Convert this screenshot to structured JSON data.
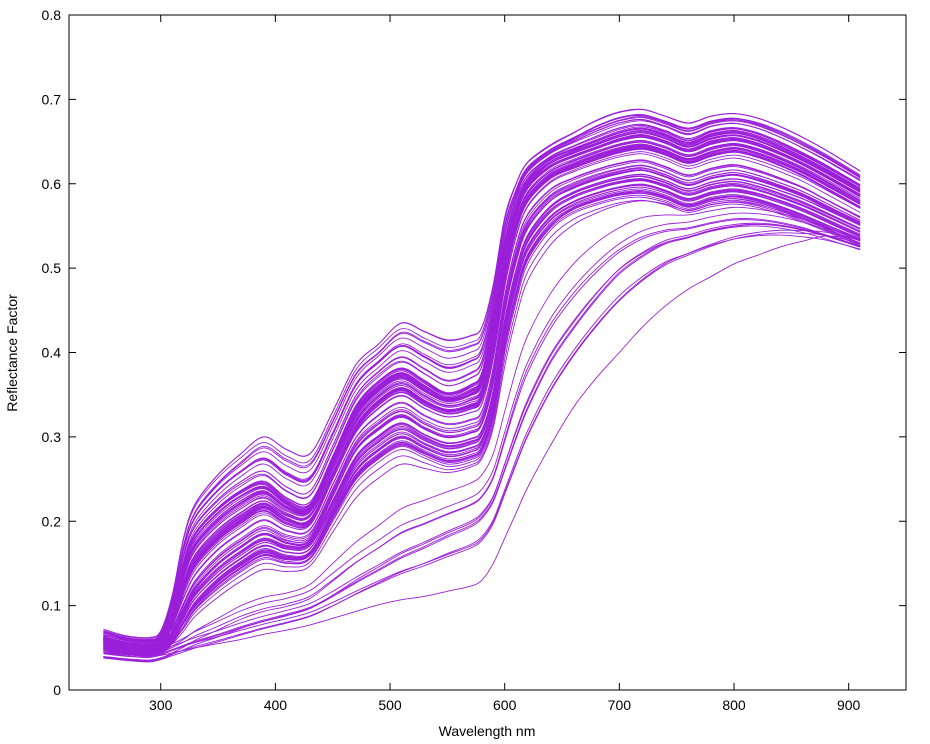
{
  "chart_data": {
    "type": "line",
    "title": "",
    "xlabel": "Wavelength nm",
    "ylabel": "Reflectance Factor",
    "xlim": [
      220,
      950
    ],
    "ylim": [
      0,
      0.8
    ],
    "xticks": [
      300,
      400,
      500,
      600,
      700,
      800,
      900
    ],
    "yticks": [
      0,
      0.1,
      0.2,
      0.3,
      0.4,
      0.5,
      0.6,
      0.7,
      0.8
    ],
    "ytick_labels": [
      "0",
      "0.1",
      "0.2",
      "0.3",
      "0.4",
      "0.5",
      "0.6",
      "0.7",
      "0.8"
    ],
    "grid": false,
    "legend": "none",
    "line_color": "#9b1fd9",
    "x": [
      250,
      270,
      290,
      300,
      310,
      320,
      330,
      350,
      370,
      390,
      410,
      430,
      450,
      470,
      490,
      510,
      530,
      550,
      570,
      580,
      590,
      600,
      610,
      620,
      640,
      660,
      680,
      700,
      720,
      740,
      760,
      780,
      800,
      820,
      840,
      860,
      880,
      910
    ],
    "representative_series": [
      {
        "values": [
          0.068,
          0.06,
          0.058,
          0.066,
          0.11,
          0.18,
          0.22,
          0.255,
          0.28,
          0.3,
          0.285,
          0.28,
          0.33,
          0.385,
          0.41,
          0.435,
          0.425,
          0.415,
          0.42,
          0.43,
          0.48,
          0.56,
          0.6,
          0.625,
          0.645,
          0.66,
          0.675,
          0.685,
          0.688,
          0.68,
          0.672,
          0.68,
          0.683,
          0.678,
          0.668,
          0.655,
          0.64,
          0.615
        ]
      },
      {
        "values": [
          0.062,
          0.055,
          0.053,
          0.06,
          0.095,
          0.15,
          0.185,
          0.215,
          0.235,
          0.245,
          0.225,
          0.22,
          0.275,
          0.335,
          0.365,
          0.38,
          0.365,
          0.35,
          0.36,
          0.375,
          0.44,
          0.52,
          0.575,
          0.605,
          0.628,
          0.64,
          0.65,
          0.66,
          0.665,
          0.658,
          0.648,
          0.658,
          0.662,
          0.656,
          0.645,
          0.632,
          0.618,
          0.595
        ]
      },
      {
        "values": [
          0.058,
          0.052,
          0.05,
          0.056,
          0.08,
          0.12,
          0.15,
          0.18,
          0.2,
          0.215,
          0.2,
          0.2,
          0.255,
          0.31,
          0.34,
          0.355,
          0.34,
          0.33,
          0.335,
          0.345,
          0.4,
          0.485,
          0.545,
          0.58,
          0.608,
          0.62,
          0.63,
          0.638,
          0.642,
          0.635,
          0.625,
          0.633,
          0.638,
          0.632,
          0.622,
          0.61,
          0.595,
          0.572
        ]
      },
      {
        "values": [
          0.054,
          0.049,
          0.047,
          0.052,
          0.068,
          0.095,
          0.12,
          0.15,
          0.17,
          0.185,
          0.175,
          0.178,
          0.23,
          0.285,
          0.31,
          0.325,
          0.31,
          0.3,
          0.305,
          0.315,
          0.365,
          0.45,
          0.51,
          0.548,
          0.58,
          0.595,
          0.605,
          0.612,
          0.616,
          0.608,
          0.598,
          0.606,
          0.61,
          0.604,
          0.595,
          0.585,
          0.572,
          0.552
        ]
      },
      {
        "values": [
          0.05,
          0.046,
          0.044,
          0.048,
          0.058,
          0.075,
          0.095,
          0.12,
          0.14,
          0.155,
          0.15,
          0.155,
          0.2,
          0.245,
          0.27,
          0.285,
          0.275,
          0.265,
          0.27,
          0.28,
          0.32,
          0.4,
          0.46,
          0.505,
          0.545,
          0.565,
          0.575,
          0.582,
          0.584,
          0.578,
          0.568,
          0.575,
          0.578,
          0.574,
          0.566,
          0.556,
          0.545,
          0.528
        ]
      },
      {
        "values": [
          0.047,
          0.044,
          0.042,
          0.045,
          0.052,
          0.06,
          0.07,
          0.085,
          0.1,
          0.11,
          0.115,
          0.125,
          0.15,
          0.175,
          0.195,
          0.215,
          0.225,
          0.235,
          0.245,
          0.255,
          0.28,
          0.33,
          0.38,
          0.42,
          0.47,
          0.505,
          0.53,
          0.548,
          0.56,
          0.563,
          0.563,
          0.568,
          0.572,
          0.57,
          0.565,
          0.558,
          0.548,
          0.535
        ]
      },
      {
        "values": [
          0.045,
          0.042,
          0.04,
          0.043,
          0.048,
          0.053,
          0.058,
          0.066,
          0.075,
          0.083,
          0.09,
          0.098,
          0.112,
          0.128,
          0.143,
          0.158,
          0.17,
          0.183,
          0.195,
          0.205,
          0.225,
          0.262,
          0.3,
          0.335,
          0.39,
          0.43,
          0.465,
          0.495,
          0.515,
          0.53,
          0.537,
          0.545,
          0.55,
          0.552,
          0.55,
          0.545,
          0.538,
          0.525
        ]
      },
      {
        "values": [
          0.043,
          0.04,
          0.039,
          0.041,
          0.044,
          0.047,
          0.05,
          0.055,
          0.06,
          0.066,
          0.071,
          0.077,
          0.085,
          0.093,
          0.101,
          0.107,
          0.111,
          0.117,
          0.123,
          0.13,
          0.15,
          0.18,
          0.21,
          0.24,
          0.29,
          0.335,
          0.37,
          0.4,
          0.43,
          0.455,
          0.475,
          0.49,
          0.505,
          0.515,
          0.525,
          0.532,
          0.538,
          0.535
        ]
      }
    ],
    "ensemble_size": 110
  }
}
